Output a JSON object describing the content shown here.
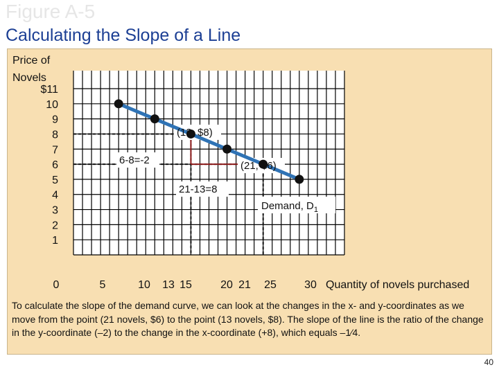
{
  "figure_label": "Figure A-5",
  "slide_title": "Calculating the Slope of a Line",
  "caption": "To calculate the slope of the demand curve, we can look at the changes in the x- and y-coordinates as we move from the point (21 novels, $6) to the point (13 novels, $8). The slope of the line is the ratio of the change in the y-coordinate (–2) to the change in the x-coordinate (+8), which equals –1⁄4.",
  "page_number": "40",
  "chart_data": {
    "type": "line",
    "ylabel": "Price of Novels",
    "xlabel": "Quantity of novels purchased",
    "xlim": [
      0,
      30
    ],
    "ylim": [
      0,
      11
    ],
    "x_ticks": [
      {
        "label": "0",
        "value": 0
      },
      {
        "label": "5",
        "value": 5
      },
      {
        "label": "10",
        "value": 10
      },
      {
        "label": "13",
        "value": 13
      },
      {
        "label": "15",
        "value": 15
      },
      {
        "label": "20",
        "value": 20
      },
      {
        "label": "21",
        "value": 21
      },
      {
        "label": "25",
        "value": 25
      },
      {
        "label": "30",
        "value": 30
      }
    ],
    "y_ticks": [
      {
        "label": "1",
        "value": 1
      },
      {
        "label": "2",
        "value": 2
      },
      {
        "label": "3",
        "value": 3
      },
      {
        "label": "4",
        "value": 4
      },
      {
        "label": "5",
        "value": 5
      },
      {
        "label": "6",
        "value": 6
      },
      {
        "label": "7",
        "value": 7
      },
      {
        "label": "8",
        "value": 8
      },
      {
        "label": "9",
        "value": 9
      },
      {
        "label": "10",
        "value": 10
      },
      {
        "label": "$11",
        "value": 11
      }
    ],
    "grid": true,
    "line_color": "#2f73b5",
    "point_color": "#111111",
    "guide_color": "#8b1a1a",
    "series": [
      {
        "name": "Demand, D",
        "name_subscript": "1",
        "points": [
          {
            "x": 5,
            "y": 10
          },
          {
            "x": 9,
            "y": 9
          },
          {
            "x": 13,
            "y": 8
          },
          {
            "x": 17,
            "y": 7
          },
          {
            "x": 21,
            "y": 6
          },
          {
            "x": 25,
            "y": 5
          }
        ]
      }
    ],
    "annotations": [
      {
        "text": "(13, $8)",
        "x": 13,
        "y": 8
      },
      {
        "text": "(21, $6)",
        "x": 21,
        "y": 6
      },
      {
        "text": "6-8=-2"
      },
      {
        "text": "21-13=8"
      }
    ]
  }
}
